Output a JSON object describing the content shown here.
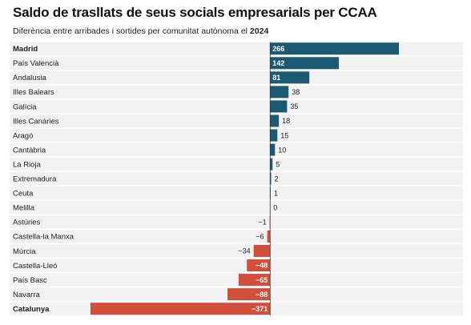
{
  "title": "Saldo de trasllats de seus socials empresarials per CCAA",
  "subtitle": {
    "text": "Diferència entre arribades i sortides per comunitat autònoma el",
    "year": "2024"
  },
  "colors": {
    "positive": "#1c5a72",
    "negative": "#d24f3c",
    "row_background": "#f2f2f2",
    "zero_line": "#333333"
  },
  "chart_data": {
    "type": "bar",
    "orientation": "horizontal",
    "title": "Saldo de trasllats de seus socials empresarials per CCAA",
    "subtitle": "Diferència entre arribades i sortides per comunitat autònoma el 2024",
    "categories": [
      "Madrid",
      "País Valencià",
      "Andalusia",
      "Illes Balears",
      "Galícia",
      "Illes Canàries",
      "Aragó",
      "Cantàbria",
      "La Rioja",
      "Extremadura",
      "Ceuta",
      "Melilla",
      "Astúries",
      "Castella-la Manxa",
      "Múrcia",
      "Castella-Lleó",
      "País Basc",
      "Navarra",
      "Catalunya"
    ],
    "values": [
      266,
      142,
      81,
      38,
      35,
      18,
      15,
      10,
      5,
      2,
      1,
      0,
      -1,
      -6,
      -34,
      -48,
      -65,
      -88,
      -371
    ],
    "value_labels": [
      "266",
      "142",
      "81",
      "38",
      "35",
      "18",
      "15",
      "10",
      "5",
      "2",
      "1",
      "0",
      "−1",
      "−6",
      "−34",
      "−48",
      "−65",
      "−88",
      "−371"
    ],
    "bold_categories": [
      "Madrid",
      "Catalunya"
    ],
    "xlim": [
      -371,
      266
    ],
    "grid": false,
    "legend": "none"
  }
}
